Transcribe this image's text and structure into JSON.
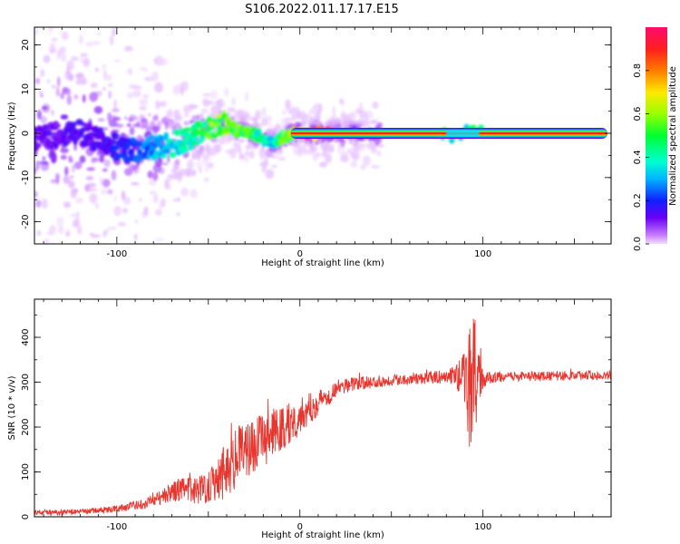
{
  "figure_title": "S106.2022.011.17.17.E15",
  "chart_data": [
    {
      "type": "heatmap",
      "xlabel": "Height of straight line (km)",
      "ylabel": "Frequency (Hz)",
      "xlim": [
        -145,
        170
      ],
      "ylim": [
        -25,
        24
      ],
      "xticks": [
        -100,
        0,
        100
      ],
      "xtick_labels": [
        "-100",
        "0",
        "100"
      ],
      "yticks": [
        -20,
        -10,
        0,
        10,
        20
      ],
      "ytick_labels": [
        "-20",
        "-10",
        "0",
        "10",
        "20"
      ],
      "grid": false,
      "colorbar": {
        "label": "Normalized spectral amplitude",
        "range": [
          0,
          1
        ],
        "ticks": [
          0.0,
          0.2,
          0.4,
          0.6,
          0.8
        ],
        "tick_labels": [
          "0.0",
          "0.2",
          "0.4",
          "0.6",
          "0.8"
        ],
        "colormap": "gist_rainbow_r"
      },
      "ridge": {
        "x": [
          -145,
          -135,
          -125,
          -115,
          -105,
          -95,
          -85,
          -75,
          -65,
          -55,
          -45,
          -40,
          -35,
          -30,
          -25,
          -20,
          -15,
          -10,
          -5,
          0,
          5,
          10,
          20,
          40,
          60,
          80,
          85,
          90,
          95,
          100,
          120,
          140,
          160,
          170
        ],
        "y": [
          -1.5,
          -0.5,
          0.5,
          -0.5,
          -2.0,
          -4.0,
          -3.5,
          -3.0,
          -2.0,
          0.0,
          1.5,
          2.5,
          0.5,
          0.8,
          0.0,
          -1.5,
          -2.5,
          -1.0,
          0.0,
          0.0,
          0.0,
          0.0,
          0.0,
          0.0,
          0.0,
          0.0,
          -1.5,
          0.5,
          1.5,
          0.0,
          0.0,
          0.0,
          0.0,
          0.0
        ],
        "amplitude": [
          0.12,
          0.12,
          0.13,
          0.14,
          0.15,
          0.2,
          0.25,
          0.35,
          0.4,
          0.45,
          0.55,
          0.6,
          0.5,
          0.55,
          0.45,
          0.4,
          0.35,
          0.5,
          0.6,
          0.85,
          0.85,
          0.9,
          0.95,
          0.97,
          0.97,
          0.95,
          0.6,
          0.55,
          0.6,
          0.9,
          0.95,
          0.95,
          0.95,
          0.95
        ]
      }
    },
    {
      "type": "line",
      "xlabel": "Height of straight line (km)",
      "ylabel": "SNR (10 * v/v)",
      "xlim": [
        -145,
        170
      ],
      "ylim": [
        0,
        485
      ],
      "xticks": [
        -100,
        0,
        100
      ],
      "xtick_labels": [
        "-100",
        "0",
        "100"
      ],
      "yticks": [
        0,
        100,
        200,
        300,
        400
      ],
      "ytick_labels": [
        "0",
        "100",
        "200",
        "300",
        "400"
      ],
      "grid": false,
      "series": [
        {
          "color": "#e8352e",
          "x": [
            -145,
            -130,
            -110,
            -100,
            -90,
            -85,
            -80,
            -75,
            -70,
            -65,
            -60,
            -55,
            -50,
            -45,
            -40,
            -35,
            -30,
            -25,
            -20,
            -15,
            -10,
            -5,
            0,
            5,
            10,
            15,
            20,
            25,
            30,
            40,
            50,
            60,
            70,
            80,
            85,
            90,
            93,
            95,
            97,
            100,
            105,
            110,
            120,
            130,
            140,
            150,
            160,
            170
          ],
          "y": [
            10,
            10,
            14,
            18,
            25,
            30,
            40,
            45,
            55,
            60,
            60,
            60,
            70,
            90,
            110,
            130,
            150,
            160,
            170,
            185,
            195,
            210,
            225,
            240,
            255,
            270,
            285,
            293,
            297,
            300,
            305,
            308,
            310,
            312,
            315,
            310,
            300,
            290,
            310,
            305,
            310,
            312,
            312,
            313,
            314,
            315,
            316,
            317
          ],
          "noise": [
            6,
            6,
            6,
            8,
            10,
            12,
            16,
            18,
            22,
            26,
            30,
            32,
            40,
            55,
            70,
            70,
            65,
            60,
            60,
            55,
            55,
            50,
            40,
            35,
            30,
            25,
            20,
            18,
            15,
            14,
            13,
            13,
            14,
            15,
            25,
            60,
            160,
            170,
            90,
            20,
            12,
            11,
            11,
            11,
            11,
            11,
            11,
            11
          ]
        }
      ]
    }
  ]
}
